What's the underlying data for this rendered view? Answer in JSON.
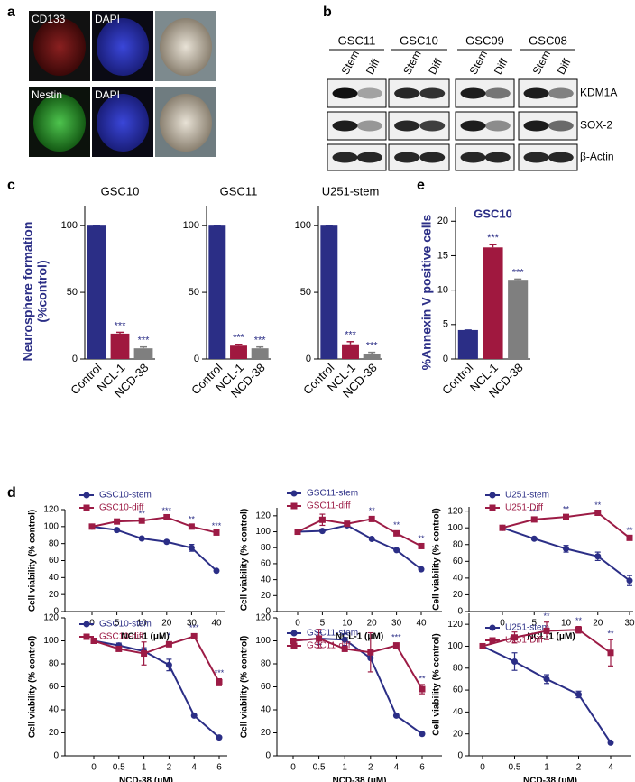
{
  "panel_labels": [
    "a",
    "b",
    "c",
    "d",
    "e"
  ],
  "panel_a": {
    "image_labels": [
      "CD133",
      "DAPI",
      "Nestin",
      "DAPI"
    ]
  },
  "panel_b": {
    "cell_lines": [
      "GSC11",
      "GSC10",
      "GSC09",
      "GSC08"
    ],
    "conditions": [
      "Stem",
      "Diff"
    ],
    "proteins": [
      "KDM1A",
      "SOX-2",
      "β-Actin"
    ]
  },
  "chart_data": [
    {
      "type": "bar",
      "title": "GSC10",
      "ylabel": [
        "Neurosphere formation",
        "(%control)"
      ],
      "categories": [
        "Control",
        "NCL-1",
        "NCD-38"
      ],
      "values": [
        100,
        19,
        8
      ],
      "errors": [
        0,
        1,
        1
      ],
      "significance": [
        null,
        "***",
        "***"
      ],
      "colors": [
        "#2b2e86",
        "#a0183f",
        "#7f7f7f"
      ],
      "ylim": [
        0,
        115
      ],
      "yticks": [
        0,
        50,
        100
      ]
    },
    {
      "type": "bar",
      "title": "GSC11",
      "categories": [
        "Control",
        "NCL-1",
        "NCD-38"
      ],
      "values": [
        100,
        10,
        8
      ],
      "errors": [
        0,
        1,
        1
      ],
      "significance": [
        null,
        "***",
        "***"
      ],
      "colors": [
        "#2b2e86",
        "#a0183f",
        "#7f7f7f"
      ],
      "ylim": [
        0,
        115
      ],
      "yticks": [
        0,
        50,
        100
      ]
    },
    {
      "type": "bar",
      "title": "U251-stem",
      "categories": [
        "Control",
        "NCL-1",
        "NCD-38"
      ],
      "values": [
        100,
        11,
        4
      ],
      "errors": [
        0,
        2,
        1
      ],
      "significance": [
        null,
        "***",
        "***"
      ],
      "colors": [
        "#2b2e86",
        "#a0183f",
        "#7f7f7f"
      ],
      "ylim": [
        0,
        115
      ],
      "yticks": [
        0,
        50,
        100
      ]
    },
    {
      "type": "bar",
      "title": "GSC10",
      "ylabel": [
        "%Annexin V positive cells"
      ],
      "categories": [
        "Control",
        "NCL-1",
        "NCD-38"
      ],
      "values": [
        4.2,
        16.2,
        11.5
      ],
      "errors": [
        0,
        0.4,
        0.1
      ],
      "significance": [
        null,
        "***",
        "***"
      ],
      "colors": [
        "#2b2e86",
        "#a0183f",
        "#7f7f7f"
      ],
      "ylim": [
        0,
        22
      ],
      "yticks": [
        0,
        5,
        10,
        15,
        20
      ]
    },
    {
      "type": "line",
      "xlabel": "NCL-1 (μM)",
      "ylabel": "Cell viability (% control)",
      "categories": [
        "0",
        "5",
        "10",
        "20",
        "30",
        "40"
      ],
      "ylim": [
        0,
        120
      ],
      "yticks": [
        0,
        20,
        40,
        60,
        80,
        100,
        120
      ],
      "series": [
        {
          "name": "GSC10-stem",
          "color": "#2b2e86",
          "marker": "circle",
          "values": [
            100,
            96,
            86,
            82,
            75,
            48
          ],
          "errors": [
            0,
            2,
            1,
            1,
            4,
            1
          ]
        },
        {
          "name": "GSC10-diff",
          "color": "#9c1b45",
          "marker": "square",
          "values": [
            100,
            106,
            107,
            111,
            100,
            93
          ],
          "errors": [
            0,
            1,
            1,
            1,
            2,
            1
          ],
          "significance": [
            null,
            null,
            "**",
            "***",
            "**",
            "***"
          ]
        }
      ]
    },
    {
      "type": "line",
      "xlabel": "NCL-1 (μM)",
      "ylabel": "Cell viability (% control)",
      "categories": [
        "0",
        "5",
        "10",
        "20",
        "30",
        "40"
      ],
      "ylim": [
        0,
        130
      ],
      "yticks": [
        0,
        20,
        40,
        60,
        80,
        100,
        120
      ],
      "series": [
        {
          "name": "GSC11-stem",
          "color": "#2b2e86",
          "marker": "circle",
          "values": [
            100,
            101,
            108,
            91,
            77,
            53
          ],
          "errors": [
            0,
            1,
            1,
            1,
            1,
            1
          ]
        },
        {
          "name": "GSC11-diff",
          "color": "#9c1b45",
          "marker": "square",
          "values": [
            100,
            115,
            110,
            116,
            98,
            82
          ],
          "errors": [
            0,
            7,
            2,
            3,
            3,
            2
          ],
          "significance": [
            null,
            null,
            null,
            "**",
            "**",
            "**"
          ]
        }
      ]
    },
    {
      "type": "line",
      "xlabel": "NCL-1 (μM)",
      "ylabel": "Cell viability (% control)",
      "categories": [
        "0",
        "5",
        "10",
        "20",
        "30"
      ],
      "ylim": [
        0,
        125
      ],
      "yticks": [
        0,
        20,
        40,
        60,
        80,
        100,
        120
      ],
      "series": [
        {
          "name": "U251-stem",
          "color": "#2b2e86",
          "marker": "circle",
          "values": [
            100,
            87,
            75,
            66,
            37
          ],
          "errors": [
            0,
            1,
            4,
            5,
            6
          ]
        },
        {
          "name": "U251-Diff",
          "color": "#9c1b45",
          "marker": "square",
          "values": [
            100,
            110,
            113,
            118,
            88
          ],
          "errors": [
            0,
            2,
            2,
            2,
            2
          ],
          "significance": [
            null,
            "***",
            "**",
            "**",
            "**"
          ]
        }
      ]
    },
    {
      "type": "line",
      "xlabel": "NCD-38 (μM)",
      "ylabel": "Cell viability (% control)",
      "categories": [
        "0",
        "0.5",
        "1",
        "2",
        "4",
        "6"
      ],
      "ylim": [
        0,
        120
      ],
      "yticks": [
        0,
        20,
        40,
        60,
        80,
        100,
        120
      ],
      "series": [
        {
          "name": "GSC10-stem",
          "color": "#2b2e86",
          "marker": "circle",
          "values": [
            100,
            96,
            91,
            79,
            35,
            16
          ],
          "errors": [
            0,
            2,
            3,
            5,
            1,
            1
          ]
        },
        {
          "name": "GSC10-diff",
          "color": "#9c1b45",
          "marker": "square",
          "values": [
            100,
            93,
            89,
            97,
            104,
            64
          ],
          "errors": [
            0,
            1,
            10,
            2,
            2,
            3
          ],
          "significance": [
            null,
            null,
            null,
            "*",
            "***",
            "***"
          ]
        }
      ]
    },
    {
      "type": "line",
      "xlabel": "NCD-38 (μM)",
      "ylabel": "Cell viability (% control)",
      "categories": [
        "0",
        "0.5",
        "1",
        "2",
        "4",
        "6"
      ],
      "ylim": [
        0,
        120
      ],
      "yticks": [
        0,
        20,
        40,
        60,
        80,
        100,
        120
      ],
      "series": [
        {
          "name": "GSC11-stem",
          "color": "#2b2e86",
          "marker": "circle",
          "values": [
            100,
            102,
            101,
            85,
            35,
            19
          ],
          "errors": [
            0,
            5,
            5,
            1,
            1,
            1
          ]
        },
        {
          "name": "GSC11-diff",
          "color": "#9c1b45",
          "marker": "square",
          "values": [
            100,
            102,
            93,
            90,
            96,
            58
          ],
          "errors": [
            0,
            8,
            2,
            17,
            2,
            4
          ],
          "significance": [
            null,
            null,
            null,
            null,
            "***",
            "**"
          ]
        }
      ]
    },
    {
      "type": "line",
      "xlabel": "NCD-38 (μM)",
      "ylabel": "Cell viability (% control)",
      "categories": [
        "0",
        "0.5",
        "1",
        "2",
        "4"
      ],
      "ylim": [
        0,
        130
      ],
      "yticks": [
        0,
        20,
        40,
        60,
        80,
        100,
        120
      ],
      "series": [
        {
          "name": "U251-stem",
          "color": "#2b2e86",
          "marker": "circle",
          "values": [
            100,
            86,
            70,
            56,
            12
          ],
          "errors": [
            0,
            8,
            4,
            3,
            1
          ]
        },
        {
          "name": "U251-Diff",
          "color": "#9c1b45",
          "marker": "square",
          "values": [
            100,
            108,
            114,
            115,
            94
          ],
          "errors": [
            0,
            5,
            8,
            3,
            12
          ],
          "significance": [
            null,
            null,
            "**",
            "**",
            "**"
          ]
        }
      ]
    }
  ]
}
